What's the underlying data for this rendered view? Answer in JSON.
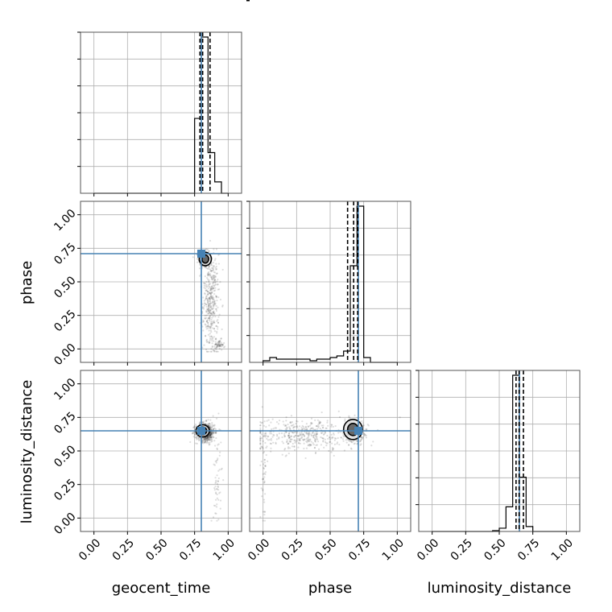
{
  "chart_data": {
    "type": "corner",
    "parameters": [
      "geocent_time",
      "phase",
      "luminosity_distance"
    ],
    "axis_range": [
      -0.1,
      1.1
    ],
    "ticks": [
      0.0,
      0.25,
      0.5,
      0.75,
      1.0
    ],
    "tick_labels": [
      "0.00",
      "0.25",
      "0.50",
      "0.75",
      "1.00"
    ],
    "grid": true,
    "truth_color": "#4682b4",
    "truths": {
      "geocent_time": 0.8,
      "phase": 0.71,
      "luminosity_distance": 0.65
    },
    "quantiles": {
      "geocent_time": [
        0.79,
        0.81,
        0.865
      ],
      "phase": [
        0.63,
        0.675,
        0.705
      ],
      "luminosity_distance": [
        0.625,
        0.648,
        0.68
      ]
    },
    "histograms": {
      "geocent_time": {
        "edges": [
          0.0,
          0.05,
          0.1,
          0.15,
          0.2,
          0.25,
          0.3,
          0.35,
          0.4,
          0.45,
          0.5,
          0.55,
          0.6,
          0.65,
          0.7,
          0.75,
          0.8,
          0.85,
          0.9,
          0.95,
          1.0
        ],
        "counts": [
          0,
          0,
          0,
          0,
          0,
          0,
          0,
          0,
          0,
          0,
          0,
          0,
          0,
          0,
          0,
          0.46,
          0.96,
          0.25,
          0.07,
          0
        ]
      },
      "phase": {
        "edges": [
          0.0,
          0.05,
          0.1,
          0.15,
          0.2,
          0.25,
          0.3,
          0.35,
          0.4,
          0.45,
          0.5,
          0.55,
          0.6,
          0.65,
          0.7,
          0.75,
          0.8,
          0.85,
          0.9,
          0.95,
          1.0
        ],
        "counts": [
          0.01,
          0.03,
          0.02,
          0.02,
          0.02,
          0.02,
          0.02,
          0.01,
          0.02,
          0.02,
          0.03,
          0.04,
          0.07,
          0.6,
          0.97,
          0.03,
          0,
          0,
          0,
          0
        ]
      },
      "luminosity_distance": {
        "edges": [
          0.0,
          0.05,
          0.1,
          0.15,
          0.2,
          0.25,
          0.3,
          0.35,
          0.4,
          0.45,
          0.5,
          0.55,
          0.6,
          0.65,
          0.7,
          0.75,
          0.8,
          0.85,
          0.9,
          0.95,
          1.0
        ],
        "counts": [
          0,
          0,
          0,
          0,
          0,
          0,
          0,
          0,
          0,
          0.005,
          0.02,
          0.15,
          0.95,
          0.33,
          0.03,
          0,
          0,
          0,
          0,
          0
        ]
      }
    },
    "scatter_panels": [
      {
        "x": "geocent_time",
        "y": "phase",
        "clusters": [
          {
            "cx": 0.82,
            "cy": 0.67,
            "sx": 0.02,
            "sy": 0.03,
            "n": 320
          },
          {
            "cx": 0.87,
            "cy": 0.35,
            "sx": 0.03,
            "sy": 0.18,
            "n": 420
          },
          {
            "cx": 0.93,
            "cy": 0.03,
            "sx": 0.02,
            "sy": 0.02,
            "n": 60
          }
        ],
        "contours": [
          {
            "cx": 0.83,
            "cy": 0.67,
            "rx": 0.045,
            "ry": 0.05
          },
          {
            "cx": 0.83,
            "cy": 0.67,
            "rx": 0.025,
            "ry": 0.03
          }
        ]
      },
      {
        "x": "geocent_time",
        "y": "luminosity_distance",
        "clusters": [
          {
            "cx": 0.83,
            "cy": 0.64,
            "sx": 0.035,
            "sy": 0.035,
            "n": 700
          },
          {
            "cx": 0.92,
            "cy": 0.3,
            "sx": 0.015,
            "sy": 0.2,
            "n": 60
          }
        ],
        "contours": [
          {
            "cx": 0.81,
            "cy": 0.65,
            "rx": 0.05,
            "ry": 0.045
          },
          {
            "cx": 0.81,
            "cy": 0.65,
            "rx": 0.03,
            "ry": 0.028
          }
        ]
      },
      {
        "x": "phase",
        "y": "luminosity_distance",
        "clusters": [
          {
            "cx": 0.68,
            "cy": 0.65,
            "sx": 0.035,
            "sy": 0.04,
            "n": 420
          },
          {
            "cx": 0.3,
            "cy": 0.62,
            "sx": 0.2,
            "sy": 0.06,
            "n": 450
          },
          {
            "cx": 0.01,
            "cy": 0.35,
            "sx": 0.01,
            "sy": 0.2,
            "n": 50
          }
        ],
        "contours": [
          {
            "cx": 0.67,
            "cy": 0.66,
            "rx": 0.07,
            "ry": 0.075
          },
          {
            "cx": 0.67,
            "cy": 0.66,
            "rx": 0.04,
            "ry": 0.045
          }
        ]
      }
    ]
  }
}
